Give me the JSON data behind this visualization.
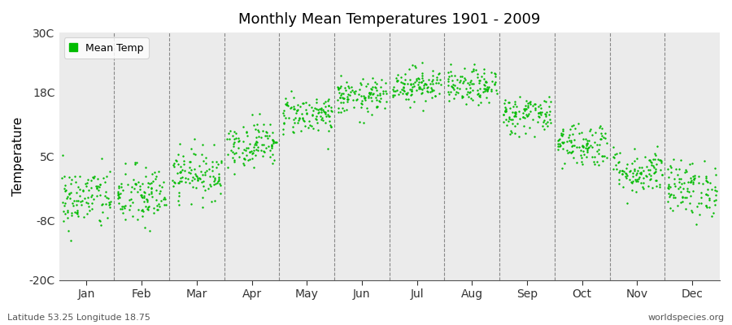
{
  "title": "Monthly Mean Temperatures 1901 - 2009",
  "ylabel": "Temperature",
  "xlabel_labels": [
    "Jan",
    "Feb",
    "Mar",
    "Apr",
    "May",
    "Jun",
    "Jul",
    "Aug",
    "Sep",
    "Oct",
    "Nov",
    "Dec"
  ],
  "yticks": [
    -20,
    -8,
    5,
    18,
    30
  ],
  "ytick_labels": [
    "-20C",
    "-8C",
    "5C",
    "18C",
    "30C"
  ],
  "ylim": [
    -20,
    30
  ],
  "dot_color": "#00bb00",
  "bg_color": "#ebebeb",
  "fig_bg_color": "#ffffff",
  "bottom_left_text": "Latitude 53.25 Longitude 18.75",
  "bottom_right_text": "worldspecies.org",
  "legend_label": "Mean Temp",
  "seed": 42,
  "monthly_means": [
    -3.5,
    -3.2,
    1.5,
    7.5,
    13.5,
    17.0,
    19.5,
    19.0,
    13.5,
    7.5,
    2.0,
    -1.5
  ],
  "monthly_stds": [
    3.2,
    3.2,
    2.5,
    2.3,
    2.0,
    1.8,
    1.8,
    1.8,
    2.0,
    2.3,
    2.3,
    2.8
  ],
  "n_years": 109,
  "dot_size": 3
}
